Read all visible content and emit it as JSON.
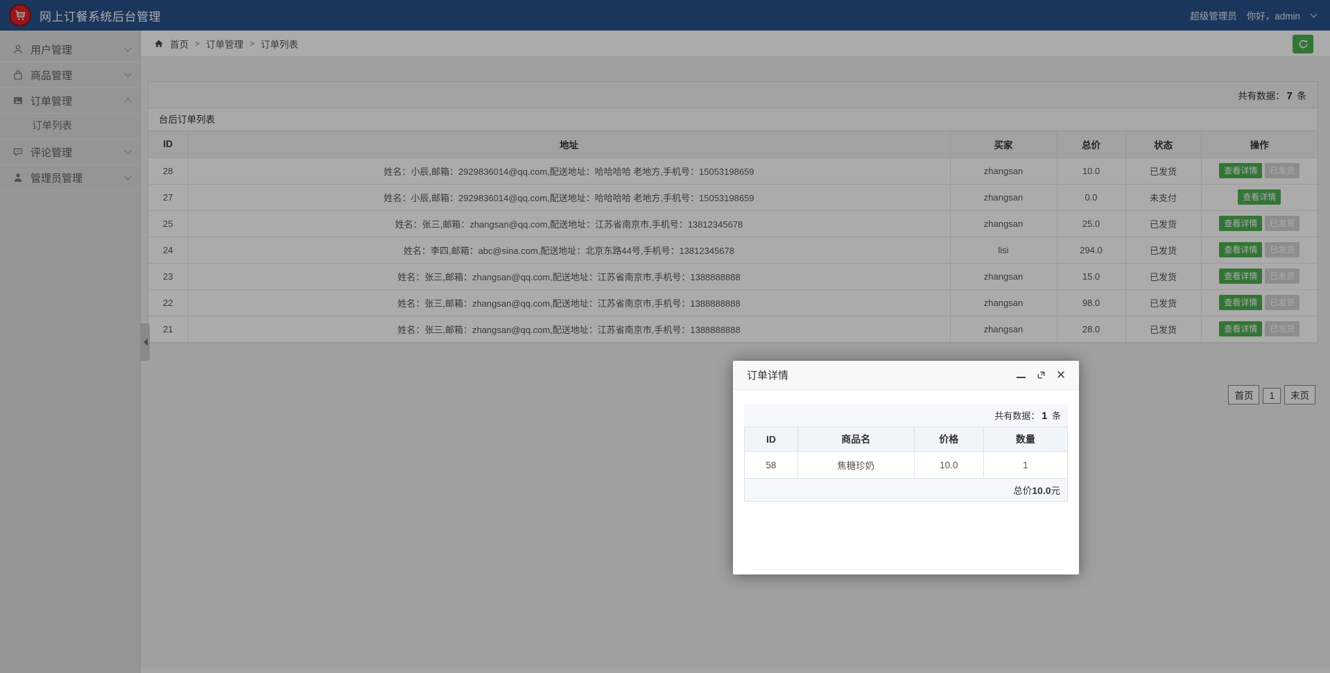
{
  "app": {
    "title": "网上订餐系统后台管理"
  },
  "header": {
    "role_label": "超级管理员",
    "greeting": "你好，admin"
  },
  "colors": {
    "header_bg": "#27518a",
    "logo_red": "#e12328",
    "accent_green": "#4caf50"
  },
  "sidebar": {
    "items": [
      {
        "label": "用户管理",
        "icon": "user-icon",
        "expanded": false
      },
      {
        "label": "商品管理",
        "icon": "goods-bag-icon",
        "expanded": false
      },
      {
        "label": "订单管理",
        "icon": "order-image-icon",
        "expanded": true,
        "children": [
          {
            "label": "订单列表"
          }
        ]
      },
      {
        "label": "评论管理",
        "icon": "comment-icon",
        "expanded": false
      },
      {
        "label": "管理员管理",
        "icon": "admin-user-icon",
        "expanded": false
      }
    ]
  },
  "breadcrumb": {
    "separator": ">",
    "items": [
      "首页",
      "订单管理",
      "订单列表"
    ]
  },
  "content": {
    "count_label": "共有数据：",
    "count": "7",
    "count_unit": "条",
    "panel_title": "台后订单列表",
    "table": {
      "columns": [
        "ID",
        "地址",
        "买家",
        "总价",
        "状态",
        "操作"
      ],
      "action_labels": {
        "view": "查看详情",
        "shipped": "已发货"
      },
      "rows": [
        {
          "id": "28",
          "address": "姓名：小辰,邮箱：2929836014@qq.com,配送地址：哈哈哈哈 老地方,手机号：15053198659",
          "buyer": "zhangsan",
          "total": "10.0",
          "status": "已发货",
          "actions": [
            "view",
            "shipped"
          ]
        },
        {
          "id": "27",
          "address": "姓名：小辰,邮箱：2929836014@qq.com,配送地址：哈哈哈哈 老地方,手机号：15053198659",
          "buyer": "zhangsan",
          "total": "0.0",
          "status": "未支付",
          "actions": [
            "view"
          ]
        },
        {
          "id": "25",
          "address": "姓名：张三,邮箱：zhangsan@qq.com,配送地址：江苏省南京市,手机号：13812345678",
          "buyer": "zhangsan",
          "total": "25.0",
          "status": "已发货",
          "actions": [
            "view",
            "shipped"
          ]
        },
        {
          "id": "24",
          "address": "姓名：李四,邮箱：abc@sina.com,配送地址：北京东路44号,手机号：13812345678",
          "buyer": "lisi",
          "total": "294.0",
          "status": "已发货",
          "actions": [
            "view",
            "shipped"
          ]
        },
        {
          "id": "23",
          "address": "姓名：张三,邮箱：zhangsan@qq.com,配送地址：江苏省南京市,手机号：1388888888",
          "buyer": "zhangsan",
          "total": "15.0",
          "status": "已发货",
          "actions": [
            "view",
            "shipped"
          ]
        },
        {
          "id": "22",
          "address": "姓名：张三,邮箱：zhangsan@qq.com,配送地址：江苏省南京市,手机号：1388888888",
          "buyer": "zhangsan",
          "total": "98.0",
          "status": "已发货",
          "actions": [
            "view",
            "shipped"
          ]
        },
        {
          "id": "21",
          "address": "姓名：张三,邮箱：zhangsan@qq.com,配送地址：江苏省南京市,手机号：1388888888",
          "buyer": "zhangsan",
          "total": "28.0",
          "status": "已发货",
          "actions": [
            "view",
            "shipped"
          ]
        }
      ]
    },
    "pagination": [
      "首页",
      "1",
      "末页"
    ]
  },
  "modal": {
    "title": "订单详情",
    "count_label": "共有数据：",
    "count": "1",
    "count_unit": "条",
    "table": {
      "columns": [
        "ID",
        "商品名",
        "价格",
        "数量"
      ],
      "rows": [
        {
          "id": "58",
          "name": "焦糖珍奶",
          "price": "10.0",
          "qty": "1"
        }
      ]
    },
    "total_label": "总价",
    "total_value": "10.0",
    "total_unit": "元"
  }
}
